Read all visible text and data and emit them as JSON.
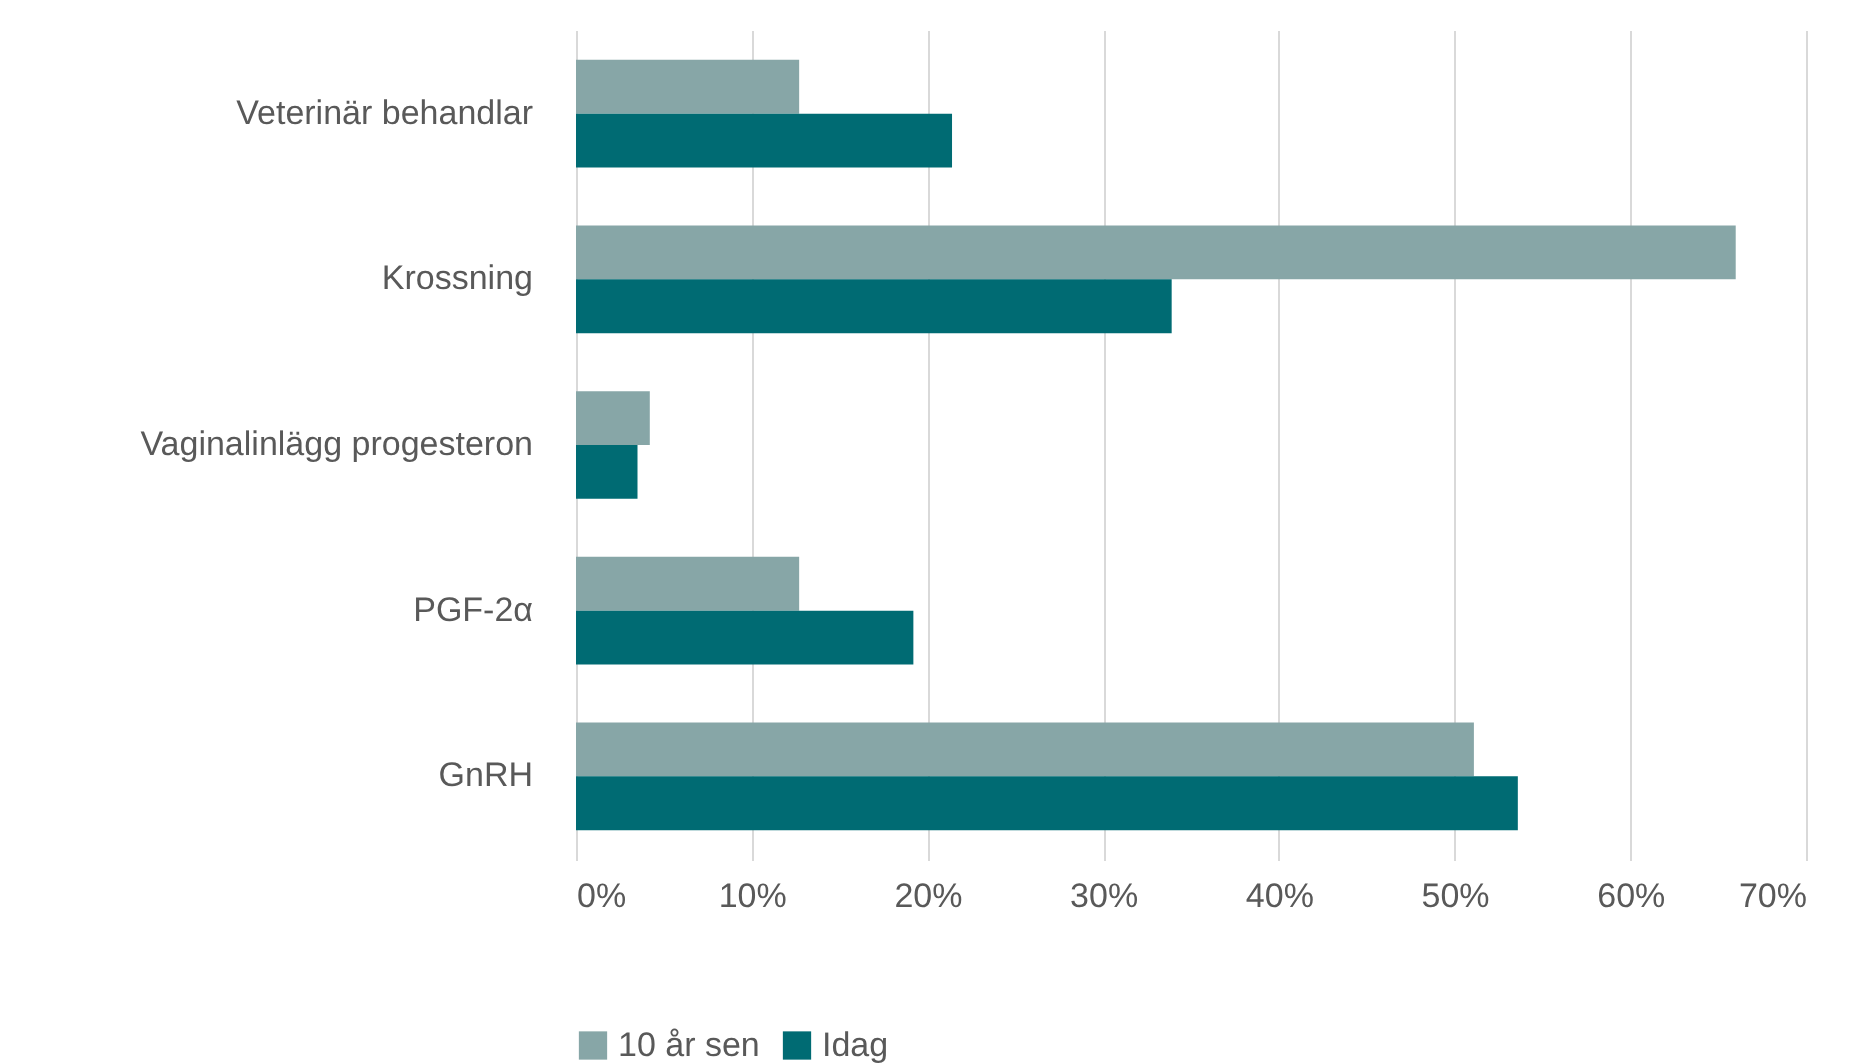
{
  "chart_data": {
    "type": "bar",
    "orientation": "horizontal",
    "categories": [
      "Veterinär behandlar",
      "Krossning",
      "Vaginalinlägg progesteron",
      "PGF-2α",
      "GnRH"
    ],
    "series": [
      {
        "name": "10 år sen",
        "color": "#87a6a7",
        "values": [
          12.7,
          66.0,
          4.2,
          12.7,
          51.1
        ]
      },
      {
        "name": "Idag",
        "color": "#006b73",
        "values": [
          21.4,
          33.9,
          3.5,
          19.2,
          53.6
        ]
      }
    ],
    "xlim": [
      0,
      70
    ],
    "xticks": [
      {
        "value": 0,
        "label": "0%"
      },
      {
        "value": 10,
        "label": "10%"
      },
      {
        "value": 20,
        "label": "20%"
      },
      {
        "value": 30,
        "label": "30%"
      },
      {
        "value": 40,
        "label": "40%"
      },
      {
        "value": 50,
        "label": "50%"
      },
      {
        "value": 60,
        "label": "60%"
      },
      {
        "value": 70,
        "label": "70%"
      }
    ],
    "grid": "x",
    "legend": "bottom"
  }
}
